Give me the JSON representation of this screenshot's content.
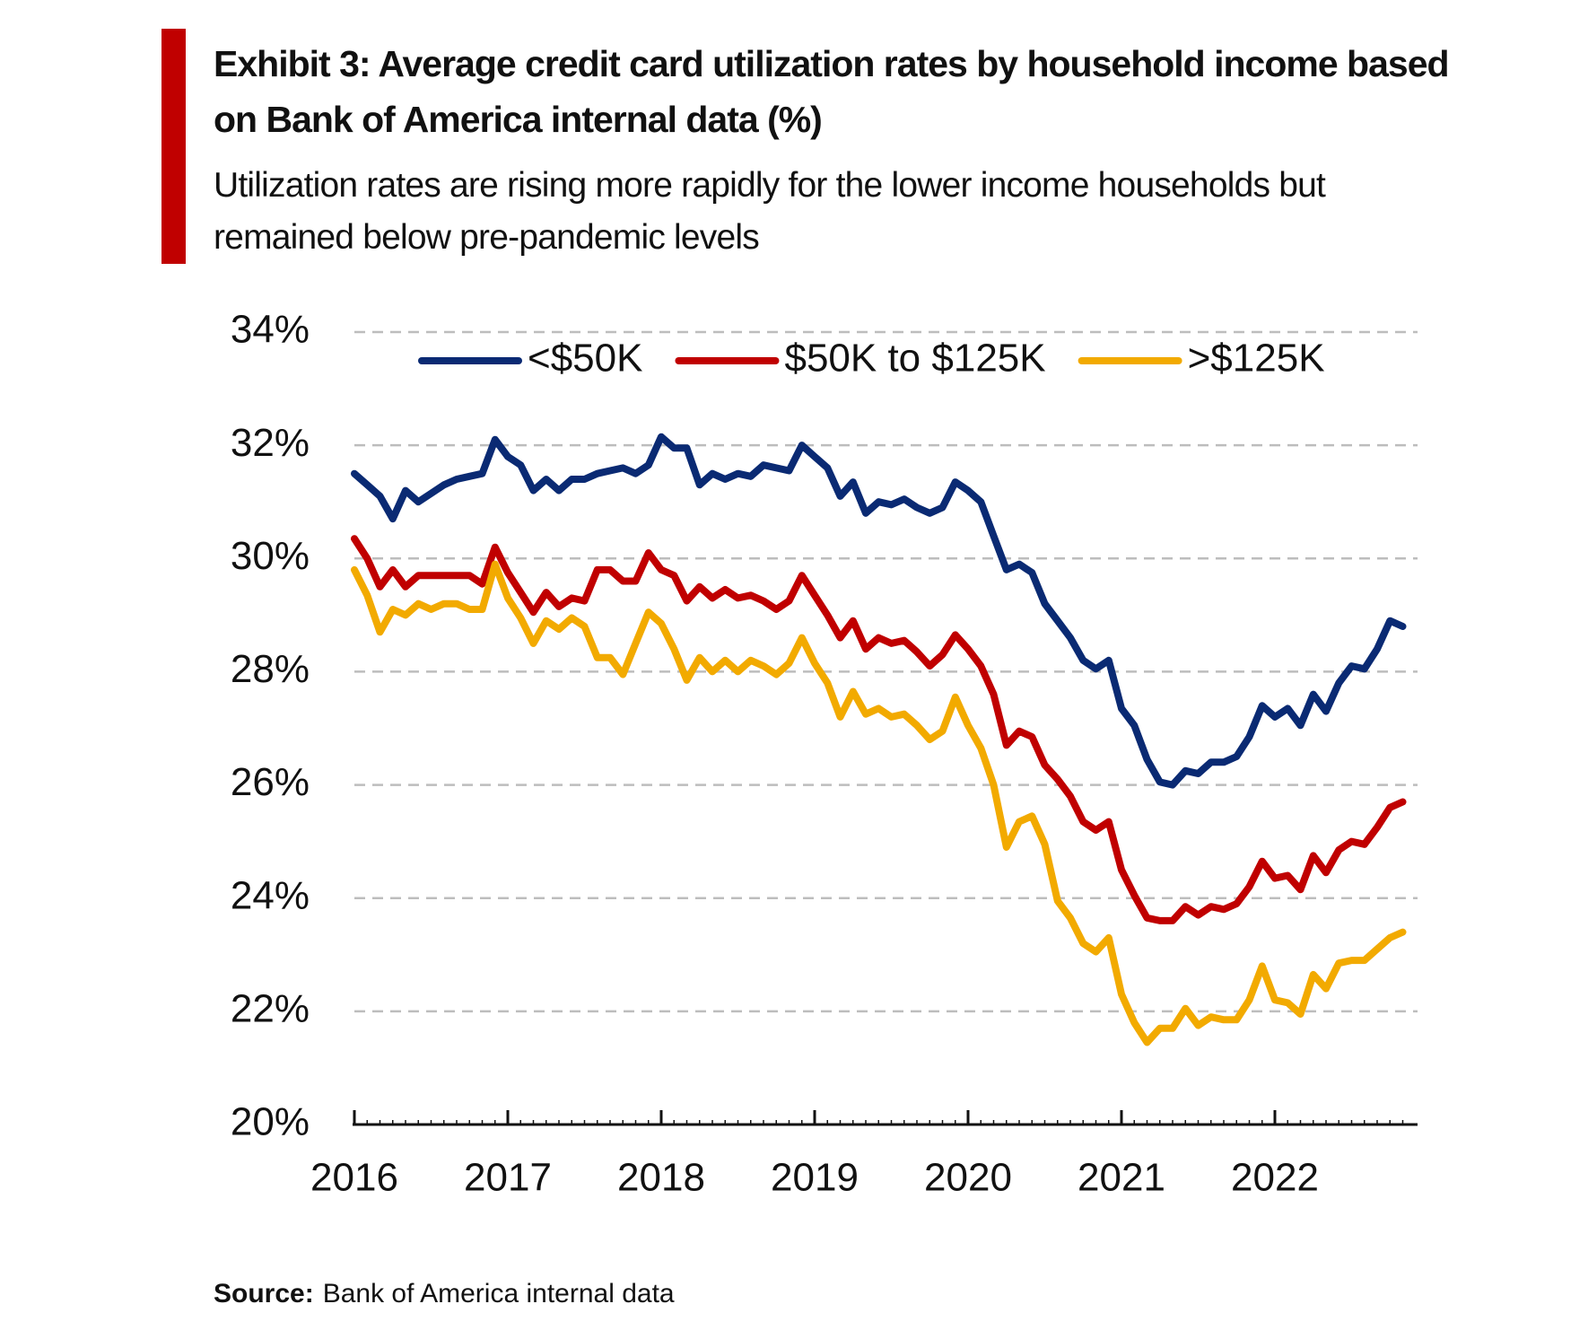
{
  "chart_data": {
    "type": "line",
    "title": "Exhibit 3: Average credit card utilization rates by household income based on Bank of America internal data (%)",
    "subtitle": "Utilization rates are rising more rapidly for the lower income households but remained below pre-pandemic levels",
    "source_label": "Source:",
    "source": "Bank of America internal data",
    "categories": [
      "2016",
      null,
      null,
      null,
      null,
      null,
      null,
      null,
      null,
      null,
      null,
      null,
      "2017",
      null,
      null,
      null,
      null,
      null,
      null,
      null,
      null,
      null,
      null,
      null,
      "2018",
      null,
      null,
      null,
      null,
      null,
      null,
      null,
      null,
      null,
      null,
      null,
      "2019",
      null,
      null,
      null,
      null,
      null,
      null,
      null,
      null,
      null,
      null,
      null,
      "2020",
      null,
      null,
      null,
      null,
      null,
      null,
      null,
      null,
      null,
      null,
      null,
      "2021",
      null,
      null,
      null,
      null,
      null,
      null,
      null,
      null,
      null,
      null,
      null,
      "2022",
      null,
      null,
      null,
      null,
      null,
      null,
      null,
      null,
      null,
      null
    ],
    "ylim": [
      20,
      34
    ],
    "yticks": [
      {
        "value": 20,
        "label": "20%"
      },
      {
        "value": 22,
        "label": "22%"
      },
      {
        "value": 24,
        "label": "24%"
      },
      {
        "value": 26,
        "label": "26%"
      },
      {
        "value": 28,
        "label": "28%"
      },
      {
        "value": 30,
        "label": "30%"
      },
      {
        "value": 32,
        "label": "32%"
      },
      {
        "value": 34,
        "label": "34%"
      }
    ],
    "grid": true,
    "legend": "top",
    "series": [
      {
        "name": "<$50K",
        "color": "#0a2a73",
        "values": [
          31.5,
          31.3,
          31.1,
          30.7,
          31.2,
          31.0,
          31.15,
          31.3,
          31.4,
          31.45,
          31.5,
          32.1,
          31.8,
          31.65,
          31.2,
          31.4,
          31.2,
          31.4,
          31.4,
          31.5,
          31.55,
          31.6,
          31.5,
          31.65,
          32.15,
          31.95,
          31.95,
          31.3,
          31.5,
          31.4,
          31.5,
          31.45,
          31.65,
          31.6,
          31.55,
          32.0,
          31.8,
          31.6,
          31.1,
          31.35,
          30.8,
          31.0,
          30.95,
          31.05,
          30.9,
          30.8,
          30.9,
          31.35,
          31.2,
          31.0,
          30.4,
          29.8,
          29.9,
          29.75,
          29.2,
          28.9,
          28.6,
          28.2,
          28.05,
          28.2,
          27.35,
          27.05,
          26.45,
          26.05,
          26.0,
          26.25,
          26.2,
          26.4,
          26.4,
          26.5,
          26.85,
          27.4,
          27.2,
          27.35,
          27.05,
          27.6,
          27.3,
          27.8,
          28.1,
          28.05,
          28.4,
          28.9,
          28.8
        ]
      },
      {
        "name": "$50K to $125K",
        "color": "#c00000",
        "values": [
          30.35,
          30.0,
          29.5,
          29.8,
          29.5,
          29.7,
          29.7,
          29.7,
          29.7,
          29.7,
          29.55,
          30.2,
          29.75,
          29.4,
          29.05,
          29.4,
          29.15,
          29.3,
          29.25,
          29.8,
          29.8,
          29.6,
          29.6,
          30.1,
          29.8,
          29.7,
          29.25,
          29.5,
          29.3,
          29.45,
          29.3,
          29.35,
          29.25,
          29.1,
          29.25,
          29.7,
          29.35,
          29.0,
          28.6,
          28.9,
          28.4,
          28.6,
          28.5,
          28.55,
          28.35,
          28.1,
          28.3,
          28.65,
          28.4,
          28.1,
          27.6,
          26.7,
          26.95,
          26.85,
          26.35,
          26.1,
          25.8,
          25.35,
          25.2,
          25.35,
          24.5,
          24.05,
          23.65,
          23.6,
          23.6,
          23.85,
          23.7,
          23.85,
          23.8,
          23.9,
          24.2,
          24.65,
          24.35,
          24.4,
          24.15,
          24.75,
          24.45,
          24.85,
          25.0,
          24.95,
          25.25,
          25.6,
          25.7
        ]
      },
      {
        "name": ">$125K",
        "color": "#f2aa00",
        "values": [
          29.8,
          29.35,
          28.7,
          29.1,
          29.0,
          29.2,
          29.1,
          29.2,
          29.2,
          29.1,
          29.1,
          29.9,
          29.3,
          28.95,
          28.5,
          28.9,
          28.75,
          28.95,
          28.8,
          28.25,
          28.25,
          27.95,
          28.5,
          29.05,
          28.85,
          28.4,
          27.85,
          28.25,
          28.0,
          28.2,
          28.0,
          28.2,
          28.1,
          27.95,
          28.15,
          28.6,
          28.15,
          27.8,
          27.2,
          27.65,
          27.25,
          27.35,
          27.2,
          27.25,
          27.05,
          26.8,
          26.95,
          27.55,
          27.05,
          26.65,
          26.0,
          24.9,
          25.35,
          25.45,
          24.95,
          23.95,
          23.65,
          23.2,
          23.05,
          23.3,
          22.3,
          21.8,
          21.45,
          21.7,
          21.7,
          22.05,
          21.75,
          21.9,
          21.85,
          21.85,
          22.2,
          22.8,
          22.2,
          22.15,
          21.95,
          22.65,
          22.4,
          22.85,
          22.9,
          22.9,
          23.1,
          23.3,
          23.4
        ]
      }
    ]
  }
}
